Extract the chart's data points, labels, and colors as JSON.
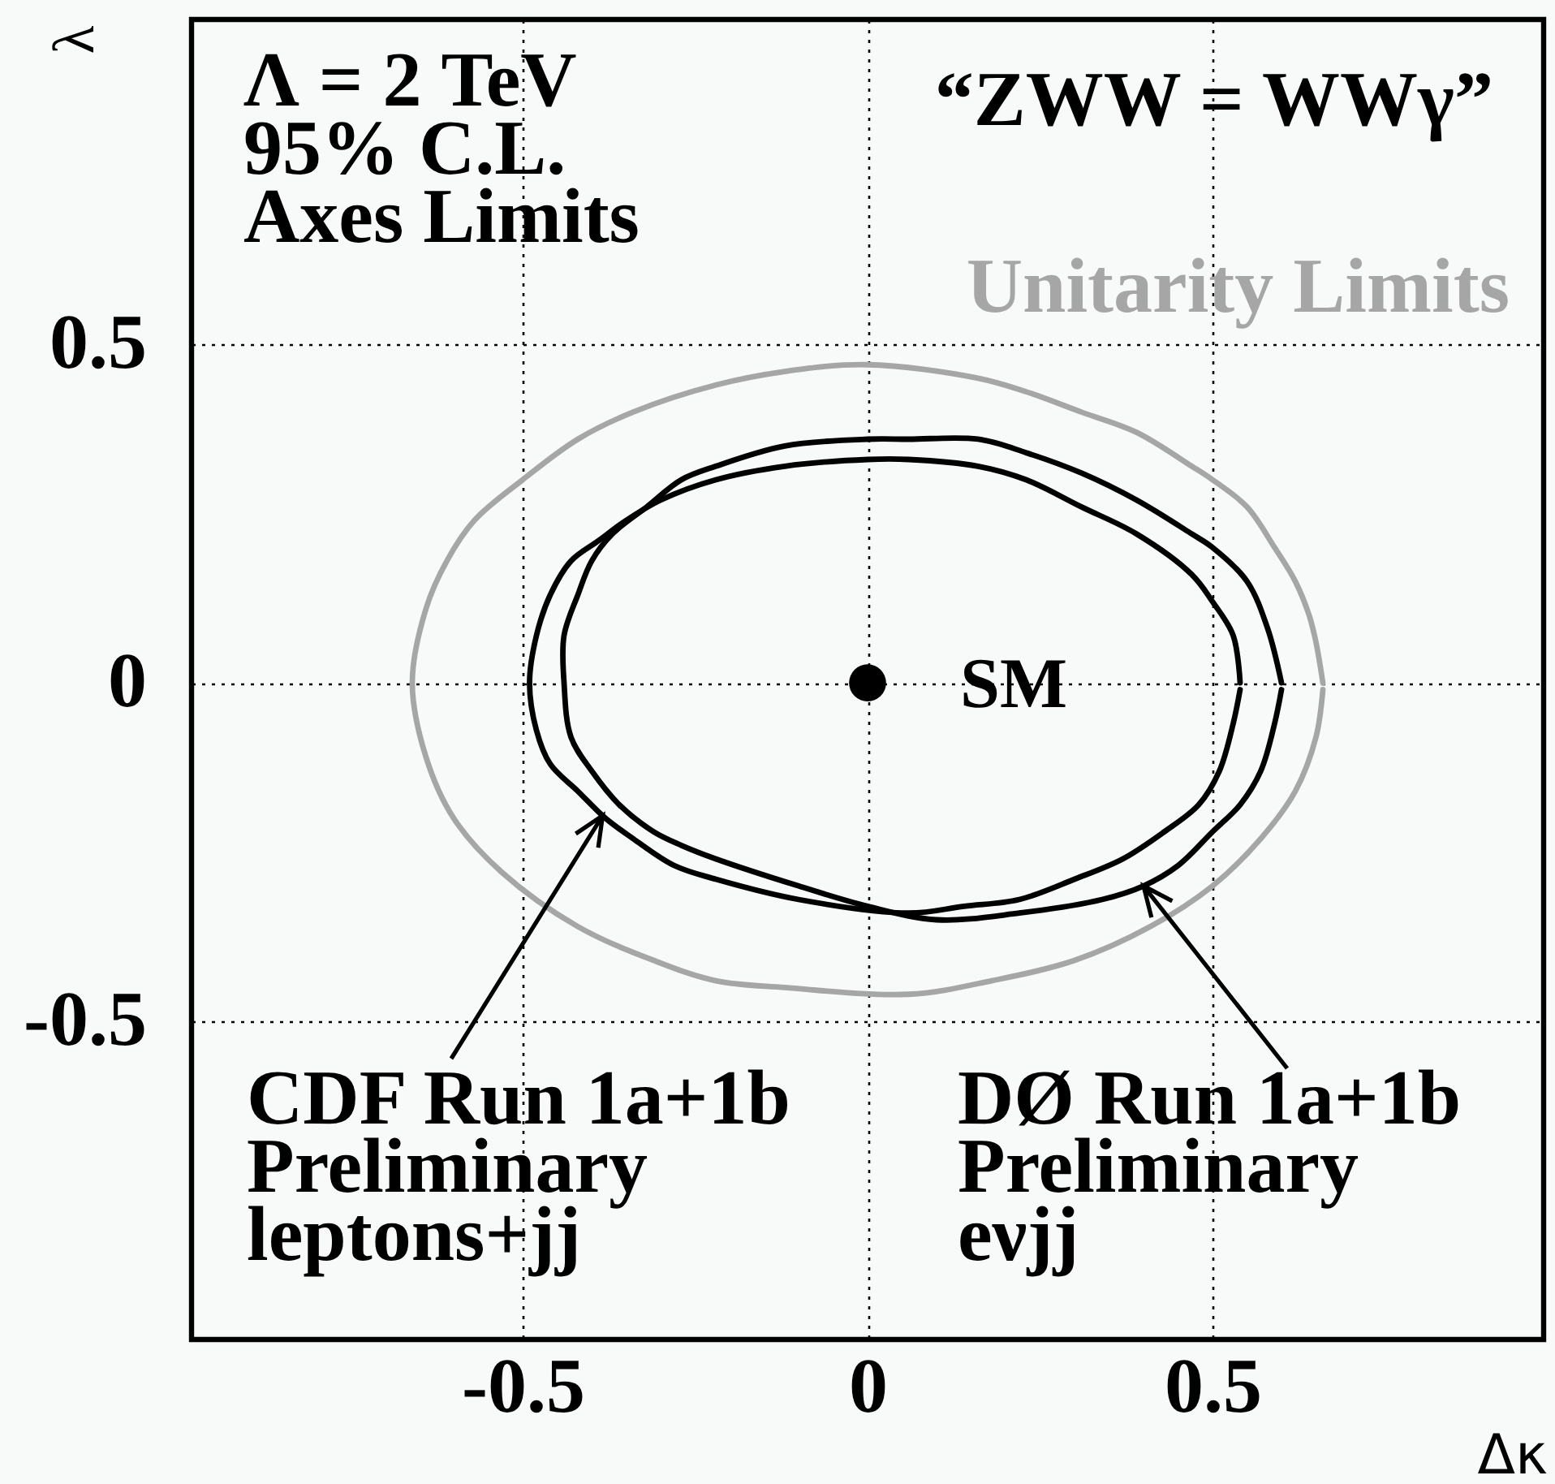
{
  "chart_data": {
    "type": "line",
    "xlabel": "Δκ",
    "ylabel": "λ",
    "xlim": [
      -0.98,
      0.98
    ],
    "ylim": [
      -0.97,
      0.98
    ],
    "xticks": [
      -0.5,
      0,
      0.5
    ],
    "yticks": [
      -0.5,
      0,
      0.5
    ],
    "grid": true,
    "annotations": [
      "Λ = 2 TeV\n95% C.L.\nAxes Limits",
      "“ZWW = WWγ”"
    ],
    "series": [
      {
        "name": "Unitarity Limits",
        "color": "#a6a6a6",
        "x": [
          0.66,
          0.65,
          0.64,
          0.62,
          0.59,
          0.55,
          0.5,
          0.47,
          0.39,
          0.31,
          0.23,
          0.16,
          0,
          -0.12,
          -0.22,
          -0.34,
          -0.42,
          -0.5,
          -0.57,
          -0.61,
          -0.64,
          -0.66,
          -0.64,
          -0.6,
          -0.53,
          -0.42,
          -0.31,
          -0.22,
          -0.12,
          0.06,
          0.18,
          0.3,
          0.41,
          0.5,
          0.57,
          0.62,
          0.65,
          0.66
        ],
        "values": [
          0,
          0.06,
          0.1,
          0.15,
          0.2,
          0.26,
          0.3,
          0.32,
          0.37,
          0.4,
          0.43,
          0.45,
          0.47,
          0.46,
          0.44,
          0.4,
          0.36,
          0.3,
          0.24,
          0.18,
          0.11,
          0,
          -0.11,
          -0.2,
          -0.28,
          -0.36,
          -0.41,
          -0.44,
          -0.45,
          -0.46,
          -0.44,
          -0.41,
          -0.36,
          -0.3,
          -0.23,
          -0.16,
          -0.08,
          -0.01
        ]
      },
      {
        "name": "CDF Run 1a+1b\nPreliminary\nleptons+jj",
        "color": "#000000",
        "x": [
          0.54,
          0.53,
          0.5,
          0.47,
          0.39,
          0.31,
          0.23,
          0.16,
          0.06,
          0,
          -0.12,
          -0.22,
          -0.3,
          -0.35,
          -0.39,
          -0.43,
          -0.46,
          -0.48,
          -0.49,
          -0.48,
          -0.46,
          -0.42,
          -0.38,
          -0.34,
          -0.28,
          -0.22,
          -0.1,
          0.06,
          0.14,
          0.22,
          0.3,
          0.37,
          0.43,
          0.48,
          0.51,
          0.53,
          0.54
        ],
        "values": [
          0,
          0.07,
          0.12,
          0.16,
          0.22,
          0.26,
          0.3,
          0.32,
          0.33,
          0.33,
          0.32,
          0.3,
          0.27,
          0.24,
          0.21,
          0.18,
          0.13,
          0.07,
          0,
          -0.07,
          -0.12,
          -0.16,
          -0.2,
          -0.23,
          -0.27,
          -0.29,
          -0.32,
          -0.34,
          -0.33,
          -0.32,
          -0.29,
          -0.26,
          -0.22,
          -0.18,
          -0.13,
          -0.06,
          -0.01
        ]
      },
      {
        "name": "DØ Run 1a+1b\nPreliminary\neνjj",
        "color": "#000000",
        "x": [
          0.6,
          0.58,
          0.55,
          0.5,
          0.47,
          0.39,
          0.31,
          0.23,
          0.16,
          0.06,
          0,
          -0.12,
          -0.22,
          -0.27,
          -0.32,
          -0.37,
          -0.4,
          -0.42,
          -0.44,
          -0.44,
          -0.43,
          -0.4,
          -0.36,
          -0.31,
          -0.27,
          -0.22,
          -0.1,
          0,
          0.1,
          0.22,
          0.34,
          0.4,
          0.45,
          0.5,
          0.54,
          0.57,
          0.59,
          0.6
        ],
        "values": [
          0,
          0.08,
          0.15,
          0.2,
          0.22,
          0.27,
          0.31,
          0.34,
          0.36,
          0.36,
          0.36,
          0.35,
          0.32,
          0.3,
          0.26,
          0.22,
          0.18,
          0.13,
          0.07,
          0,
          -0.08,
          -0.13,
          -0.18,
          -0.22,
          -0.24,
          -0.26,
          -0.3,
          -0.33,
          -0.35,
          -0.34,
          -0.32,
          -0.3,
          -0.27,
          -0.22,
          -0.18,
          -0.13,
          -0.06,
          -0.01
        ]
      },
      {
        "name": "SM",
        "type": "scatter",
        "color": "#000000",
        "marker": "circle",
        "x": [
          0
        ],
        "values": [
          0
        ]
      }
    ]
  }
}
